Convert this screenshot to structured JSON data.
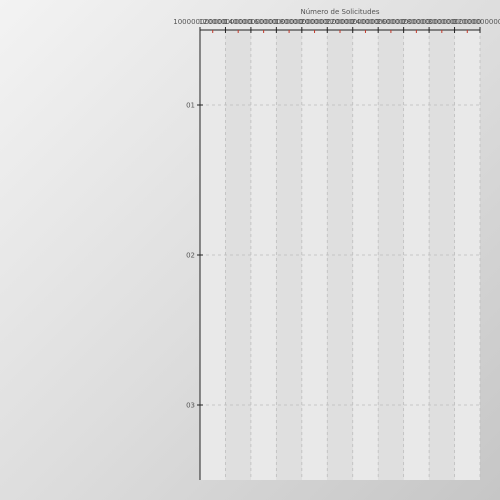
{
  "chart_data": {
    "type": "bar",
    "orientation": "horizontal",
    "title": "",
    "xlabel": "Número de Solicitudes",
    "ylabel": "",
    "x_axis_position": "top",
    "categories": [
      "01",
      "02",
      "03"
    ],
    "values": [
      0,
      0,
      0
    ],
    "x_ticks": [
      "100000000000",
      "120000000000",
      "140000000000",
      "160000000000",
      "180000000000",
      "200000000000",
      "220000000000",
      "240000000000",
      "260000000000",
      "280000000000",
      "300000000000",
      "320000000000"
    ],
    "xlim": [
      100000000000,
      320000000000
    ],
    "grid": true,
    "colors": {
      "axis": "#222222",
      "grid": "#bdbdbd",
      "minor_tick": "#c0392b",
      "band_light": "#e9e9e9",
      "band_dark": "#dfdfdf"
    }
  }
}
